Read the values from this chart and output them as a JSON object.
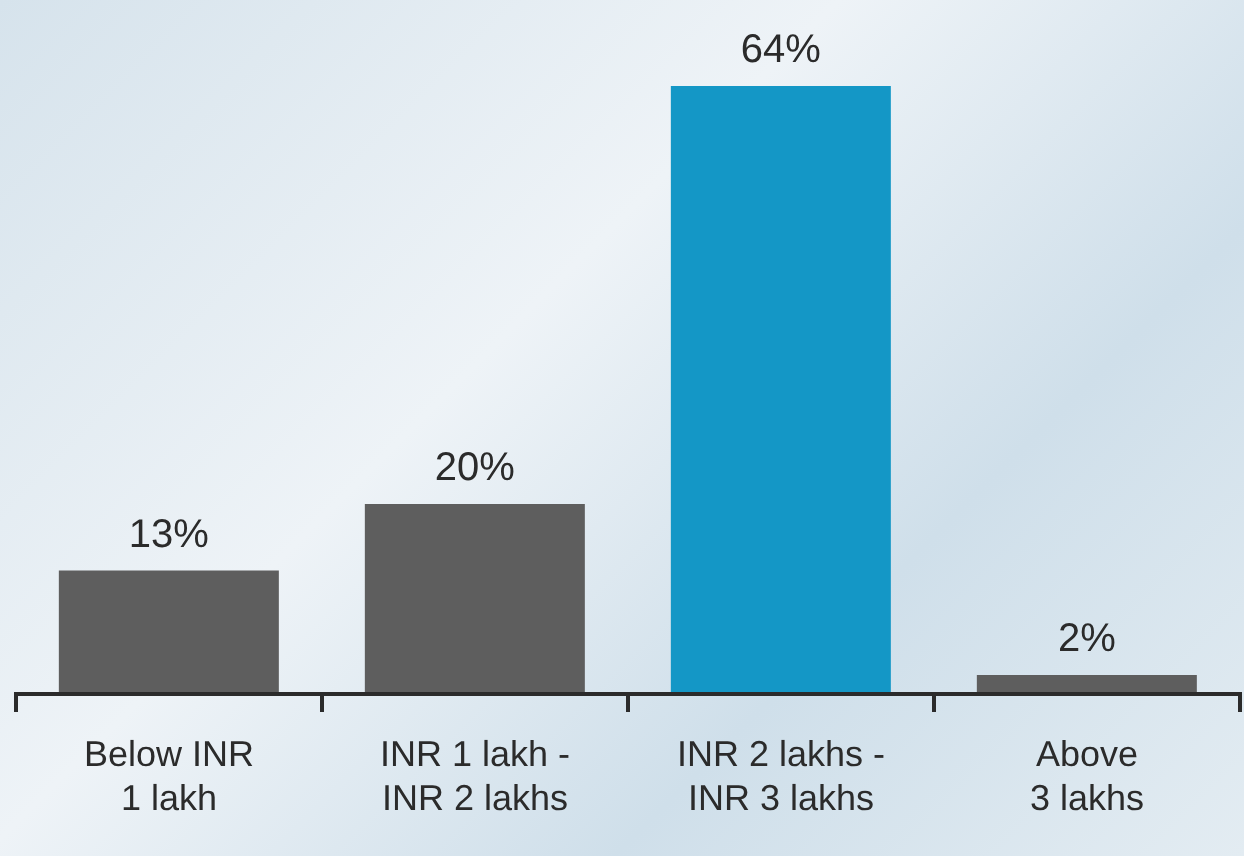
{
  "chart_data": {
    "type": "bar",
    "categories": [
      "Below INR\n1 lakh",
      "INR 1 lakh -\nINR 2 lakhs",
      "INR 2 lakhs -\nINR 3 lakhs",
      "Above\n3 lakhs"
    ],
    "values": [
      13,
      20,
      64,
      2
    ],
    "colors": [
      "#5e5e5e",
      "#5e5e5e",
      "#1497c6",
      "#5e5e5e"
    ],
    "value_labels": [
      "13%",
      "20%",
      "64%",
      "2%"
    ],
    "grid": false,
    "legend": false
  }
}
